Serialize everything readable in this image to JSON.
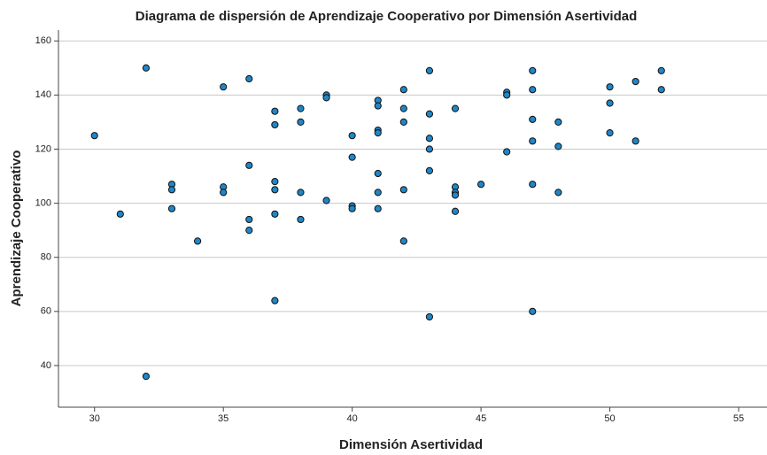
{
  "chart_data": {
    "type": "scatter",
    "title": "Diagrama de dispersión de Aprendizaje Cooperativo por Dimensión Asertividad",
    "x_label": "Dimensión Asertividad",
    "y_label": "Aprendizaje Cooperativo",
    "x": [
      30,
      31,
      32,
      32,
      33,
      33,
      33,
      34,
      35,
      35,
      35,
      36,
      36,
      36,
      36,
      37,
      37,
      37,
      37,
      37,
      37,
      38,
      38,
      38,
      38,
      39,
      39,
      39,
      40,
      40,
      40,
      40,
      41,
      41,
      41,
      41,
      41,
      41,
      41,
      42,
      42,
      42,
      42,
      42,
      43,
      43,
      43,
      43,
      43,
      43,
      44,
      44,
      44,
      44,
      44,
      45,
      46,
      46,
      46,
      47,
      47,
      47,
      47,
      47,
      47,
      48,
      48,
      48,
      50,
      50,
      50,
      51,
      51,
      52,
      52
    ],
    "values": [
      125,
      96,
      150,
      36,
      107,
      105,
      98,
      86,
      143,
      106,
      104,
      146,
      114,
      94,
      90,
      134,
      129,
      108,
      105,
      96,
      64,
      135,
      130,
      104,
      94,
      140,
      139,
      101,
      125,
      117,
      99,
      98,
      138,
      136,
      127,
      126,
      111,
      104,
      98,
      142,
      135,
      130,
      105,
      86,
      149,
      133,
      124,
      120,
      112,
      58,
      135,
      106,
      104,
      103,
      97,
      107,
      141,
      140,
      119,
      149,
      142,
      131,
      123,
      107,
      60,
      130,
      121,
      104,
      143,
      137,
      126,
      145,
      123,
      149,
      142
    ],
    "color": "#1f86c8",
    "xlim": [
      28.6,
      56.1
    ],
    "ylim": [
      24.6,
      164
    ],
    "xticks": [
      30,
      35,
      40,
      45,
      50,
      55
    ],
    "yticks": [
      40,
      60,
      80,
      100,
      120,
      140,
      160
    ],
    "grid": true
  }
}
